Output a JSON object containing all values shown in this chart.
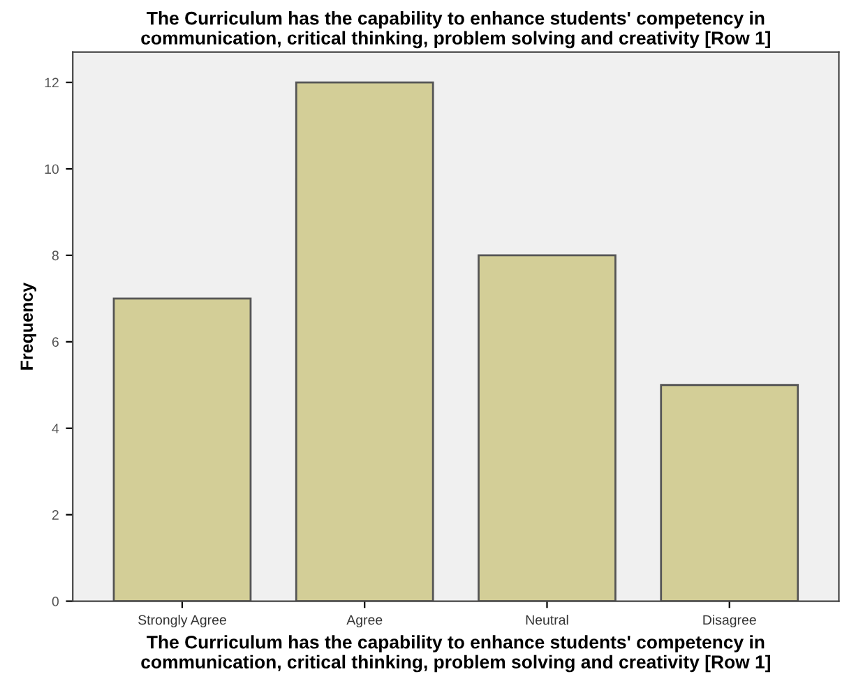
{
  "chart_data": {
    "type": "bar",
    "title": "The Curriculum has the capability to enhance students' competency in\ncommunication, critical thinking, problem solving and creativity [Row 1]",
    "xlabel": "The Curriculum has the capability to enhance students' competency in\ncommunication, critical thinking, problem solving and creativity [Row 1]",
    "ylabel": "Frequency",
    "categories": [
      "Strongly Agree",
      "Agree",
      "Neutral",
      "Disagree"
    ],
    "values": [
      7,
      12,
      8,
      5
    ],
    "color": "#d3ce97",
    "ylim": [
      0,
      12.7
    ],
    "yticks": [
      0,
      2,
      4,
      6,
      8,
      10,
      12
    ],
    "grid": false
  }
}
